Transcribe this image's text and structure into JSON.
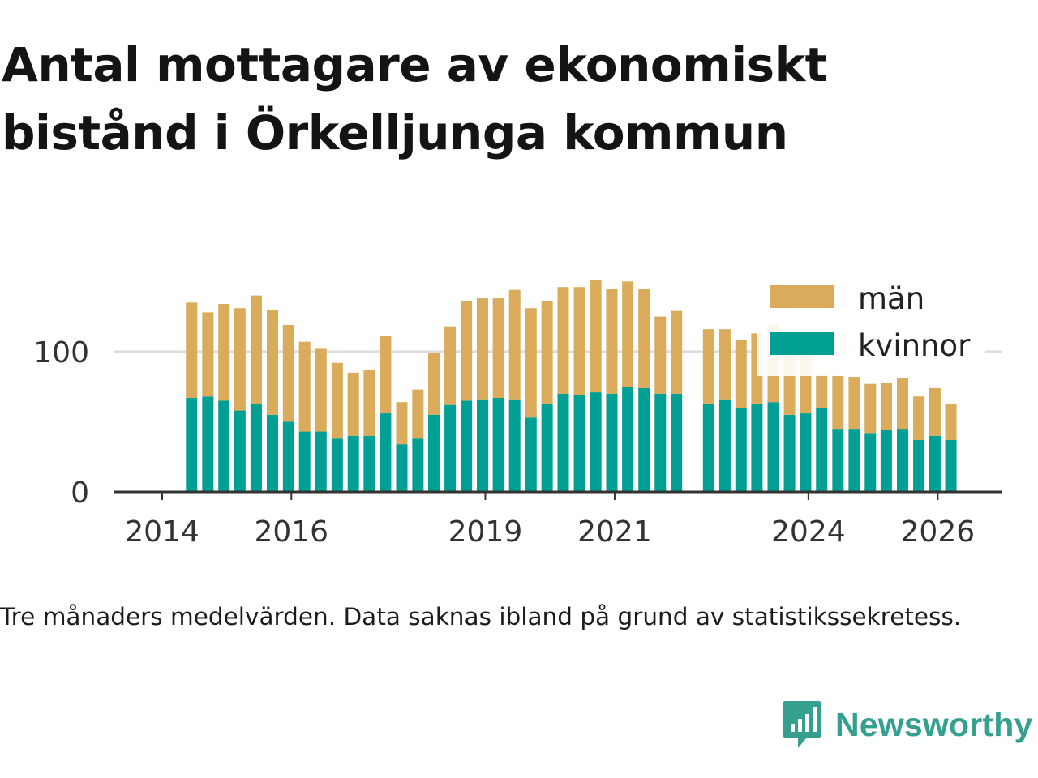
{
  "title": "Antal mottagare av ekonomiskt bistånd i Örkelljunga kommun",
  "note": "Tre månaders medelvärden. Data saknas ibland på grund av statistikssekretess.",
  "brand": {
    "name": "Newsworthy",
    "icon": "newsworthy-logo-icon",
    "color": "#35a08f"
  },
  "colors": {
    "man": "#d9ab5a",
    "kvinnor": "#009f94",
    "grid": "#dddddd",
    "axis": "#333333"
  },
  "chart_data": {
    "type": "bar",
    "stacked": true,
    "x_type": "date",
    "xlim": [
      "2013-04-01",
      "2027-01-01"
    ],
    "ylim": [
      0,
      160
    ],
    "x_ticks": [
      "2014",
      "2016",
      "2019",
      "2021",
      "2024",
      "2026"
    ],
    "y_ticks": [
      "0",
      "100"
    ],
    "grid": "horizontal",
    "legend_position": "top-right",
    "legend": [
      "män",
      "kvinnor"
    ],
    "x": [
      "2014-06",
      "2014-09",
      "2014-12",
      "2015-03",
      "2015-06",
      "2015-09",
      "2015-12",
      "2016-03",
      "2016-06",
      "2016-09",
      "2016-12",
      "2017-03",
      "2017-06",
      "2017-09",
      "2017-12",
      "2018-03",
      "2018-06",
      "2018-09",
      "2018-12",
      "2019-03",
      "2019-06",
      "2019-09",
      "2019-12",
      "2020-03",
      "2020-06",
      "2020-09",
      "2020-12",
      "2021-03",
      "2021-06",
      "2021-09",
      "2021-12",
      "2022-06",
      "2022-09",
      "2022-12",
      "2023-03",
      "2023-06",
      "2023-09",
      "2023-12",
      "2024-03",
      "2024-06",
      "2024-09",
      "2024-12",
      "2025-03",
      "2025-06",
      "2025-09",
      "2025-12",
      "2026-03"
    ],
    "series": [
      {
        "name": "kvinnor",
        "values": [
          67,
          68,
          65,
          58,
          63,
          55,
          50,
          43,
          43,
          38,
          40,
          40,
          56,
          34,
          38,
          55,
          62,
          65,
          66,
          67,
          66,
          53,
          63,
          70,
          69,
          71,
          70,
          75,
          74,
          70,
          70,
          63,
          66,
          60,
          63,
          64,
          55,
          56,
          60,
          45,
          45,
          42,
          44,
          45,
          37,
          40,
          37
        ]
      },
      {
        "name": "män",
        "values": [
          68,
          60,
          69,
          73,
          77,
          75,
          69,
          64,
          59,
          54,
          45,
          47,
          55,
          30,
          35,
          44,
          56,
          71,
          72,
          71,
          78,
          78,
          73,
          76,
          77,
          80,
          75,
          75,
          71,
          55,
          59,
          53,
          50,
          48,
          50,
          56,
          58,
          46,
          24,
          38,
          37,
          35,
          34,
          36,
          31,
          34,
          26
        ]
      }
    ]
  }
}
